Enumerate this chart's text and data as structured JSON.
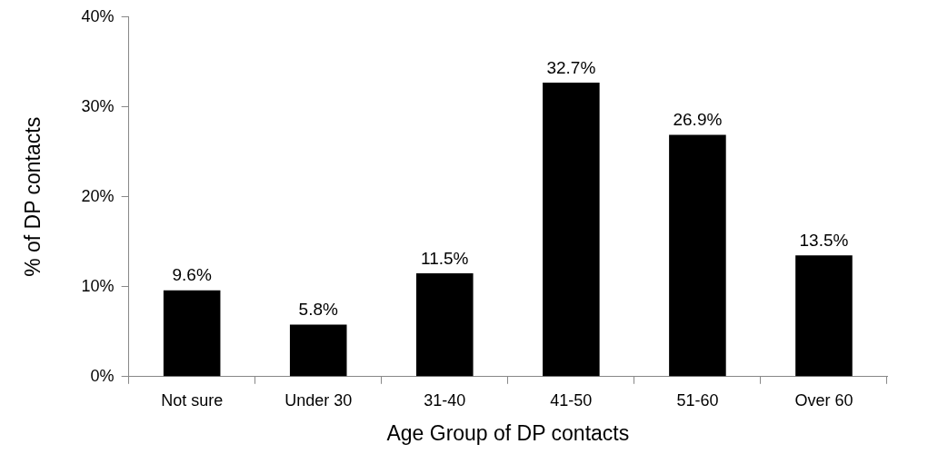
{
  "chart_data": {
    "type": "bar",
    "xlabel": "Age Group of DP contacts",
    "ylabel": "% of DP contacts",
    "categories": [
      "Not sure",
      "Under 30",
      "31-40",
      "41-50",
      "51-60",
      "Over 60"
    ],
    "values": [
      9.6,
      5.8,
      11.5,
      32.7,
      26.9,
      13.5
    ],
    "value_labels": [
      "9.6%",
      "5.8%",
      "11.5%",
      "32.7%",
      "26.9%",
      "13.5%"
    ],
    "color": "#000000",
    "ylim": [
      0,
      40
    ],
    "yticks": [
      {
        "value": 0,
        "label": "0%"
      },
      {
        "value": 10,
        "label": "10%"
      },
      {
        "value": 20,
        "label": "20%"
      },
      {
        "value": 30,
        "label": "30%"
      },
      {
        "value": 40,
        "label": "40%"
      }
    ],
    "grid": false,
    "legend": false
  }
}
